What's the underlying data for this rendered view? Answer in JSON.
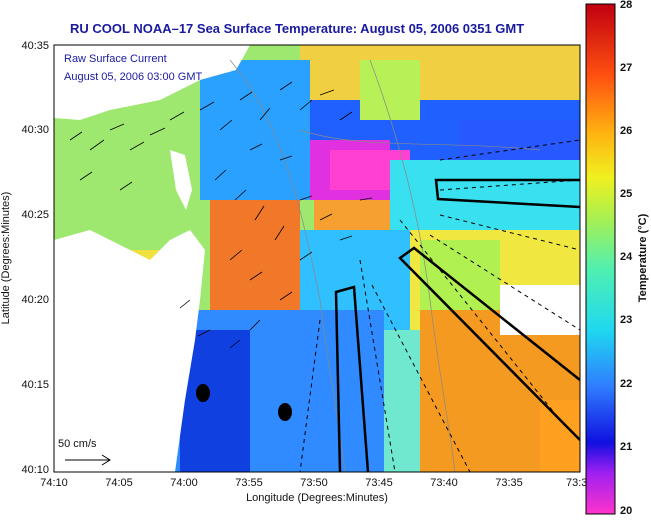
{
  "title": "RU COOL  NOAA–17  Sea Surface Temperature:  August 05, 2006 0351 GMT",
  "overlay": {
    "line1": "Raw Surface Current",
    "line2": "August 05, 2006 03:00 GMT",
    "scale_label": "50 cm/s"
  },
  "axes": {
    "xlabel": "Longitude (Degrees:Minutes)",
    "ylabel": "Latitude (Degrees:Minutes)",
    "xticks": [
      "74:10",
      "74:05",
      "74:00",
      "73:55",
      "73:50",
      "73:45",
      "73:40",
      "73:35",
      "73:3"
    ],
    "yticks": [
      "40:35",
      "40:30",
      "40:25",
      "40:20",
      "40:15",
      "40:10"
    ]
  },
  "colorbar": {
    "label": "Temperature (°C)",
    "ticks": [
      "28",
      "27",
      "26",
      "25",
      "24",
      "23",
      "22",
      "21",
      "20"
    ],
    "min": 20,
    "max": 28
  },
  "colors": {
    "title": "#1a1aa0",
    "land": "#ffffff",
    "vector": "#000000"
  },
  "chart_data": {
    "type": "heatmap",
    "title": "RU COOL  NOAA–17  Sea Surface Temperature:  August 05, 2006 0351 GMT",
    "xlabel": "Longitude (Degrees:Minutes)",
    "ylabel": "Latitude (Degrees:Minutes)",
    "colorbar_label": "Temperature (°C)",
    "value_range": [
      20,
      28
    ],
    "xlim": [
      "74:10",
      "73:3"
    ],
    "ylim": [
      "40:10",
      "40:35"
    ],
    "grid": false
  }
}
